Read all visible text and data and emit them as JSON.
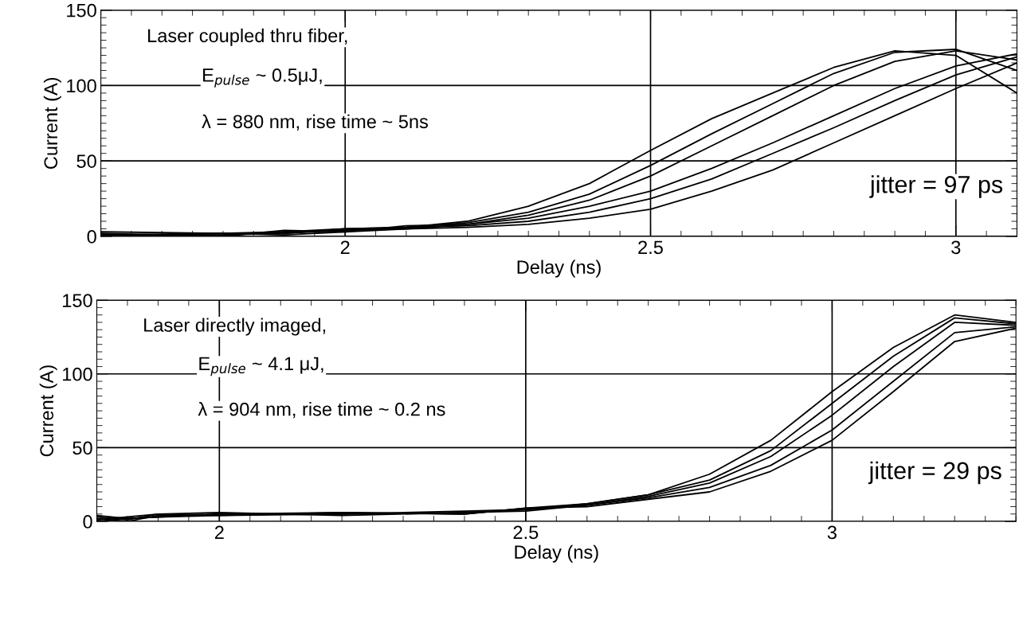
{
  "chart_data": [
    {
      "type": "line",
      "xlabel": "Delay (ns)",
      "ylabel": "Current (A)",
      "xlim": [
        1.6,
        3.1
      ],
      "ylim": [
        0,
        150
      ],
      "xticks": [
        2,
        2.5,
        3
      ],
      "yticks": [
        0,
        50,
        100,
        150
      ],
      "grid": true,
      "marker": "none",
      "line_style": "solid",
      "annotations": [
        "Laser coupled thru fiber,",
        "E$_{pulse}$ ~ 0.5μJ,",
        "λ = 880 nm, rise time ~ 5ns",
        "jitter = 97 ps"
      ],
      "series": [
        {
          "color": "#000000",
          "x": [
            1.6,
            1.8,
            1.9,
            2.0,
            2.1,
            2.2,
            2.3,
            2.4,
            2.5,
            2.6,
            2.7,
            2.8,
            2.9,
            3.0,
            3.1
          ],
          "values": [
            0,
            1,
            3,
            4,
            6,
            10,
            20,
            35,
            57,
            78,
            95,
            112,
            123,
            120,
            95
          ]
        },
        {
          "color": "#000000",
          "x": [
            1.6,
            1.8,
            1.9,
            2.0,
            2.1,
            2.2,
            2.3,
            2.4,
            2.5,
            2.6,
            2.7,
            2.8,
            2.9,
            3.0,
            3.1
          ],
          "values": [
            1,
            2,
            2,
            5,
            6,
            9,
            16,
            28,
            47,
            68,
            88,
            108,
            122,
            124,
            110
          ]
        },
        {
          "color": "#000000",
          "x": [
            1.6,
            1.8,
            1.9,
            2.0,
            2.1,
            2.2,
            2.3,
            2.4,
            2.5,
            2.6,
            2.7,
            2.8,
            2.9,
            3.0,
            3.1
          ],
          "values": [
            2,
            0,
            4,
            3,
            7,
            8,
            14,
            24,
            40,
            60,
            80,
            100,
            116,
            123,
            117
          ]
        },
        {
          "color": "#000000",
          "x": [
            1.6,
            1.8,
            1.9,
            2.0,
            2.1,
            2.2,
            2.3,
            2.4,
            2.5,
            2.6,
            2.7,
            2.8,
            2.9,
            3.0,
            3.1
          ],
          "values": [
            1,
            1,
            2,
            4,
            5,
            8,
            12,
            20,
            30,
            45,
            62,
            80,
            98,
            113,
            121
          ]
        },
        {
          "color": "#000000",
          "x": [
            1.6,
            1.8,
            1.9,
            2.0,
            2.1,
            2.2,
            2.3,
            2.4,
            2.5,
            2.6,
            2.7,
            2.8,
            2.9,
            3.0,
            3.1
          ],
          "values": [
            3,
            2,
            3,
            5,
            6,
            7,
            10,
            16,
            25,
            38,
            55,
            72,
            90,
            107,
            119
          ]
        },
        {
          "color": "#000000",
          "x": [
            1.6,
            1.8,
            1.9,
            2.0,
            2.1,
            2.2,
            2.3,
            2.4,
            2.5,
            2.6,
            2.7,
            2.8,
            2.9,
            3.0,
            3.1
          ],
          "values": [
            0,
            2,
            1,
            3,
            5,
            6,
            8,
            12,
            18,
            30,
            44,
            62,
            80,
            98,
            115
          ]
        }
      ]
    },
    {
      "type": "line",
      "xlabel": "Delay (ns)",
      "ylabel": "Current (A)",
      "xlim": [
        1.8,
        3.3
      ],
      "ylim": [
        0,
        150
      ],
      "xticks": [
        2,
        2.5,
        3
      ],
      "yticks": [
        0,
        50,
        100,
        150
      ],
      "grid": true,
      "marker": "none",
      "line_style": "solid",
      "annotations": [
        "Laser directly imaged,",
        "E$_{pulse}$ ~ 4.1 μJ,",
        "λ = 904 nm, rise time ~ 0.2 ns",
        "jitter = 29 ps"
      ],
      "series": [
        {
          "color": "#000000",
          "x": [
            1.8,
            1.85,
            1.9,
            2.0,
            2.2,
            2.4,
            2.5,
            2.6,
            2.7,
            2.8,
            2.9,
            3.0,
            3.1,
            3.2,
            3.3
          ],
          "values": [
            2,
            0,
            4,
            5,
            5,
            6,
            8,
            12,
            18,
            32,
            55,
            88,
            118,
            140,
            135
          ]
        },
        {
          "color": "#000000",
          "x": [
            1.8,
            1.85,
            1.9,
            2.0,
            2.2,
            2.4,
            2.5,
            2.6,
            2.7,
            2.8,
            2.9,
            3.0,
            3.1,
            3.2,
            3.3
          ],
          "values": [
            4,
            2,
            3,
            5,
            6,
            5,
            9,
            12,
            18,
            28,
            48,
            80,
            112,
            138,
            134
          ]
        },
        {
          "color": "#000000",
          "x": [
            1.8,
            1.85,
            1.9,
            2.0,
            2.2,
            2.4,
            2.5,
            2.6,
            2.7,
            2.8,
            2.9,
            3.0,
            3.1,
            3.2,
            3.3
          ],
          "values": [
            1,
            3,
            5,
            4,
            5,
            7,
            8,
            11,
            17,
            26,
            44,
            72,
            105,
            135,
            133
          ]
        },
        {
          "color": "#000000",
          "x": [
            1.8,
            1.85,
            1.9,
            2.0,
            2.2,
            2.4,
            2.5,
            2.6,
            2.7,
            2.8,
            2.9,
            3.0,
            3.1,
            3.2,
            3.3
          ],
          "values": [
            3,
            1,
            5,
            6,
            4,
            6,
            7,
            11,
            16,
            23,
            38,
            62,
            95,
            128,
            132
          ]
        },
        {
          "color": "#000000",
          "x": [
            1.8,
            1.85,
            1.9,
            2.0,
            2.2,
            2.4,
            2.5,
            2.6,
            2.7,
            2.8,
            2.9,
            3.0,
            3.1,
            3.2,
            3.3
          ],
          "values": [
            0,
            2,
            3,
            4,
            6,
            5,
            9,
            10,
            15,
            20,
            34,
            55,
            88,
            122,
            131
          ]
        }
      ]
    }
  ]
}
